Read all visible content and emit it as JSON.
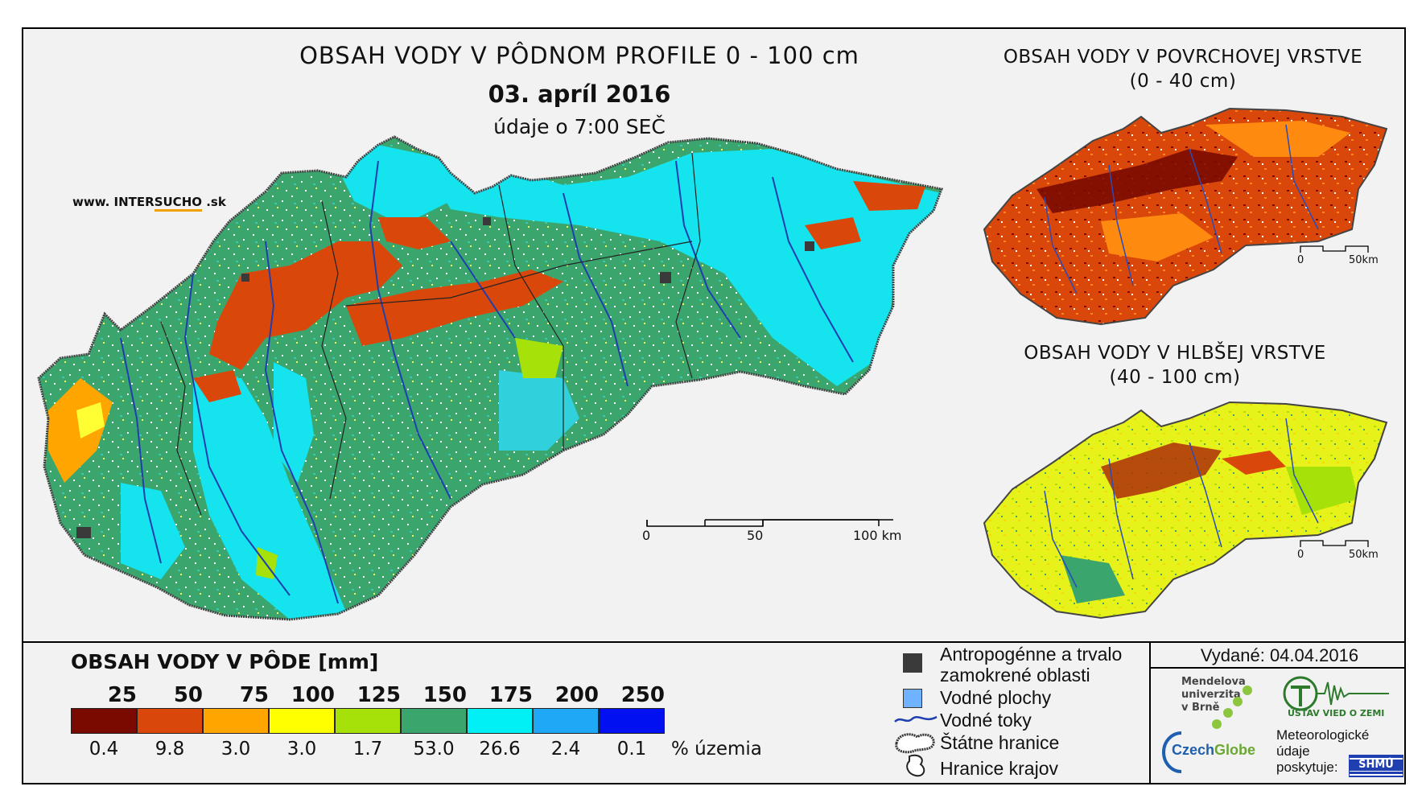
{
  "title": "OBSAH VODY V PÔDNOM PROFILE 0 - 100 cm",
  "date": "03. apríl 2016",
  "time_note": "údaje o 7:00 SEČ",
  "website": {
    "prefix": "www. INTER",
    "highlight": "SUCHO",
    "suffix": " .sk"
  },
  "main_scale": {
    "labels": [
      "0",
      "50",
      "100 km"
    ]
  },
  "inset_surface": {
    "title": "OBSAH VODY V POVRCHOVEJ VRSTVE",
    "subtitle": "(0 - 40 cm)",
    "scale": {
      "labels": [
        "0",
        "50km"
      ]
    }
  },
  "inset_deep": {
    "title": "OBSAH VODY V HLBŠEJ VRSTVE",
    "subtitle": "(40 - 100 cm)",
    "scale": {
      "labels": [
        "0",
        "50km"
      ]
    }
  },
  "legend": {
    "title": "OBSAH VODY V PÔDE [mm]",
    "class_labels": [
      "25",
      "50",
      "75",
      "100",
      "125",
      "150",
      "175",
      "200",
      "250"
    ],
    "classes": [
      {
        "color": "#7a0a00",
        "percent": "0.4"
      },
      {
        "color": "#d9480a",
        "percent": "9.8"
      },
      {
        "color": "#ffa500",
        "percent": "3.0"
      },
      {
        "color": "#ffff00",
        "percent": "3.0"
      },
      {
        "color": "#a6e10a",
        "percent": "1.7"
      },
      {
        "color": "#3ba56e",
        "percent": "53.0"
      },
      {
        "color": "#00f0f5",
        "percent": "26.6"
      },
      {
        "color": "#1ea8f5",
        "percent": "2.4"
      },
      {
        "color": "#0010f0",
        "percent": "0.1"
      }
    ],
    "percent_unit": "% územia",
    "map_items": [
      {
        "icon": "dark-square-icon",
        "label_line1": "Antropogénne a trvalo",
        "label_line2": "zamokrené oblasti"
      },
      {
        "icon": "blue-square-icon",
        "label_line1": "Vodné plochy"
      },
      {
        "icon": "river-line-icon",
        "label_line1": "Vodné toky"
      },
      {
        "icon": "state-border-icon",
        "label_line1": "Štátne hranice"
      },
      {
        "icon": "region-border-icon",
        "label_line1": "Hranice krajov"
      }
    ]
  },
  "issued": "Vydané: 04.04.2016",
  "logos": {
    "mendel": [
      "Mendelova",
      "univerzita",
      "v Brně"
    ],
    "czechglobe": {
      "part1": "Czech",
      "part2": "Globe"
    },
    "ustav": "ÚSTAV VIED O ZEMI",
    "shmu": "SHMÚ",
    "meteo": [
      "Meteorologické",
      "údaje",
      "poskytuje:"
    ]
  },
  "colors": {
    "dry_dark": "#7a0a00",
    "dry": "#d9480a",
    "green": "#3ba56e",
    "cyan": "#00f0f5",
    "river": "#1f3fb0"
  }
}
